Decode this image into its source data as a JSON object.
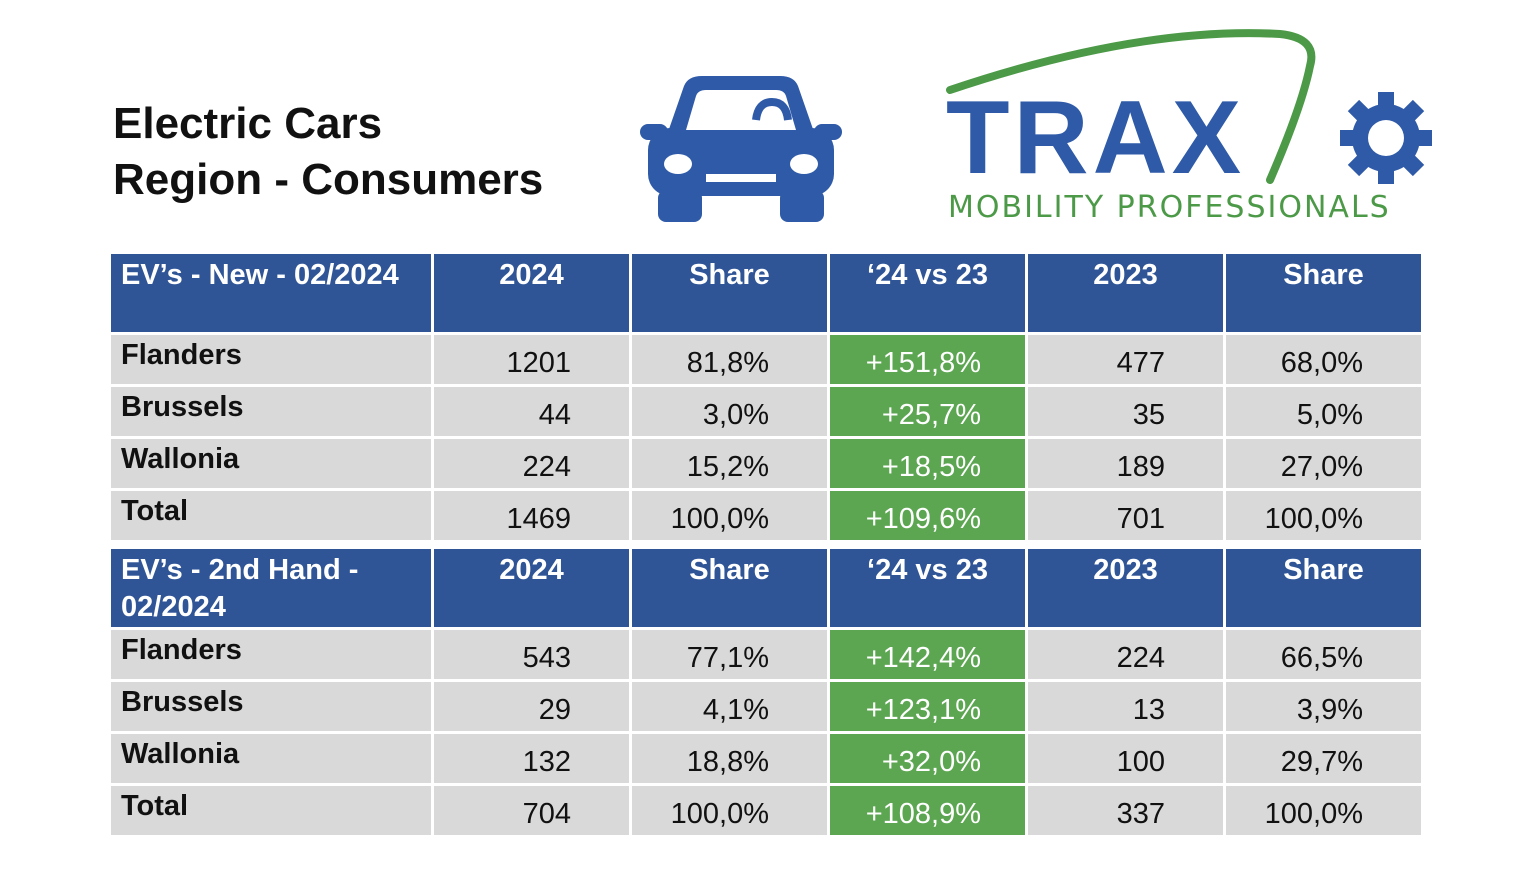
{
  "title": {
    "line1": "Electric Cars",
    "line2": "Region - Consumers"
  },
  "logo": {
    "word": "TRAXIO",
    "tagline": "MOBILITY PROFESSIONALS",
    "blue": "#2e5aa8",
    "green": "#4c9a48"
  },
  "icons": {
    "car": "car-icon",
    "gear": "gear-icon"
  },
  "colors": {
    "header_bg": "#2f5597",
    "cell_bg": "#d9d9d9",
    "change_bg": "#5ca652"
  },
  "tables": [
    {
      "header": [
        "EV’s - New - 02/2024",
        "2024",
        "Share",
        "‘24 vs 23",
        "2023",
        "Share"
      ],
      "rows": [
        [
          "Flanders",
          "1201",
          "81,8%",
          "+151,8%",
          "477",
          "68,0%"
        ],
        [
          "Brussels",
          "44",
          "3,0%",
          "+25,7%",
          "35",
          "5,0%"
        ],
        [
          "Wallonia",
          "224",
          "15,2%",
          "+18,5%",
          "189",
          "27,0%"
        ],
        [
          "Total",
          "1469",
          "100,0%",
          "+109,6%",
          "701",
          "100,0%"
        ]
      ]
    },
    {
      "header": [
        "EV’s - 2nd Hand - 02/2024",
        "2024",
        "Share",
        "‘24 vs 23",
        "2023",
        "Share"
      ],
      "rows": [
        [
          "Flanders",
          "543",
          "77,1%",
          "+142,4%",
          "224",
          "66,5%"
        ],
        [
          "Brussels",
          "29",
          "4,1%",
          "+123,1%",
          "13",
          "3,9%"
        ],
        [
          "Wallonia",
          "132",
          "18,8%",
          "+32,0%",
          "100",
          "29,7%"
        ],
        [
          "Total",
          "704",
          "100,0%",
          "+108,9%",
          "337",
          "100,0%"
        ]
      ]
    }
  ]
}
